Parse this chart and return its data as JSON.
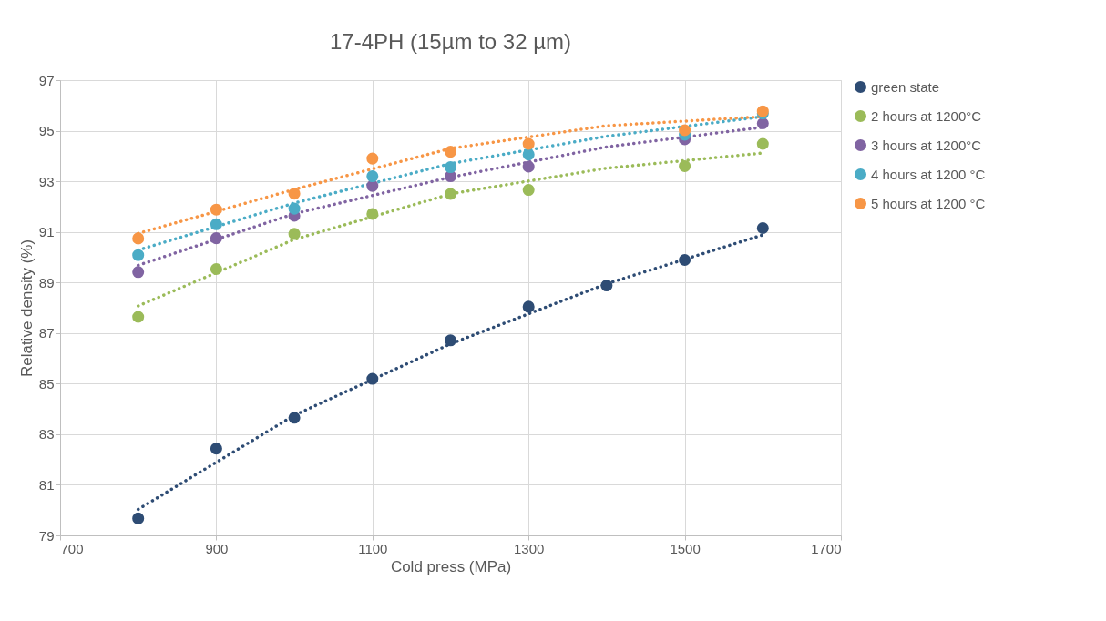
{
  "chart_data": {
    "type": "scatter",
    "title": "17-4PH (15µm to 32 µm)",
    "xlabel": "Cold press (MPa)",
    "ylabel": "Relative density (%)",
    "x": [
      800,
      900,
      1000,
      1100,
      1200,
      1300,
      1400,
      1500,
      1600
    ],
    "xlim": [
      700,
      1700
    ],
    "xticks": [
      700,
      900,
      {
        "value": 1100,
        "label": "1100"
      },
      {
        "value": 1300,
        "label": "1300"
      },
      {
        "value": 1500,
        "label": "1500"
      },
      {
        "value": 1700,
        "label": "1700"
      }
    ],
    "ylim": [
      79,
      97
    ],
    "yticks": [
      79,
      81,
      83,
      85,
      87,
      89,
      91,
      93,
      95,
      97
    ],
    "grid": true,
    "legend": "right",
    "series": [
      {
        "name": "green state",
        "marker": "circle",
        "color": "#2e4c74",
        "values": [
          79.67,
          82.43,
          83.65,
          85.19,
          86.71,
          88.04,
          88.88,
          89.89,
          91.15
        ]
      },
      {
        "name": "2 hours at 1200°C",
        "marker": "circle",
        "color": "#9bbb59",
        "x": [
          800,
          900,
          1000,
          1100,
          1200,
          1300,
          1500,
          1600
        ],
        "values": [
          87.64,
          89.53,
          90.92,
          91.71,
          92.5,
          92.66,
          93.6,
          94.48
        ]
      },
      {
        "name": "3 hours at 1200°C",
        "marker": "circle",
        "color": "#8064a2",
        "x": [
          800,
          900,
          1000,
          1100,
          1200,
          1300,
          1500,
          1600
        ],
        "values": [
          89.41,
          90.75,
          91.64,
          92.82,
          93.2,
          93.58,
          94.66,
          95.29
        ]
      },
      {
        "name": "4 hours at 1200 °C",
        "marker": "circle",
        "color": "#4bacc6",
        "x": [
          800,
          900,
          1000,
          1100,
          1200,
          1300,
          1500,
          1600
        ],
        "values": [
          90.08,
          91.3,
          91.92,
          93.2,
          93.56,
          94.06,
          94.84,
          95.68
        ]
      },
      {
        "name": "5 hours at 1200 °C",
        "marker": "circle",
        "color": "#f79646",
        "x": [
          800,
          900,
          1000,
          1100,
          1200,
          1300,
          1500,
          1600
        ],
        "values": [
          90.74,
          91.88,
          92.51,
          93.9,
          94.17,
          94.48,
          95.02,
          95.77
        ]
      },
      {
        "type": "line",
        "line_style": "dotted",
        "color": "#2e4c74",
        "x": [
          800,
          1000,
          1200,
          1400,
          1600
        ],
        "values": [
          80.03,
          83.75,
          86.57,
          88.95,
          90.88
        ]
      },
      {
        "type": "line",
        "line_style": "dotted",
        "color": "#9bbb59",
        "x": [
          800,
          1000,
          1200,
          1400,
          1600
        ],
        "values": [
          88.07,
          90.7,
          92.5,
          93.52,
          94.12
        ]
      },
      {
        "type": "line",
        "line_style": "dotted",
        "color": "#8064a2",
        "x": [
          800,
          1000,
          1200,
          1400,
          1600
        ],
        "values": [
          89.68,
          91.72,
          93.16,
          94.36,
          95.14
        ]
      },
      {
        "type": "line",
        "line_style": "dotted",
        "color": "#4bacc6",
        "x": [
          800,
          1000,
          1200,
          1400,
          1600
        ],
        "values": [
          90.28,
          92.14,
          93.7,
          94.78,
          95.56
        ]
      },
      {
        "type": "line",
        "line_style": "dotted",
        "color": "#f79646",
        "x": [
          800,
          1000,
          1200,
          1400,
          1600
        ],
        "values": [
          90.94,
          92.68,
          94.3,
          95.2,
          95.56
        ]
      }
    ]
  }
}
